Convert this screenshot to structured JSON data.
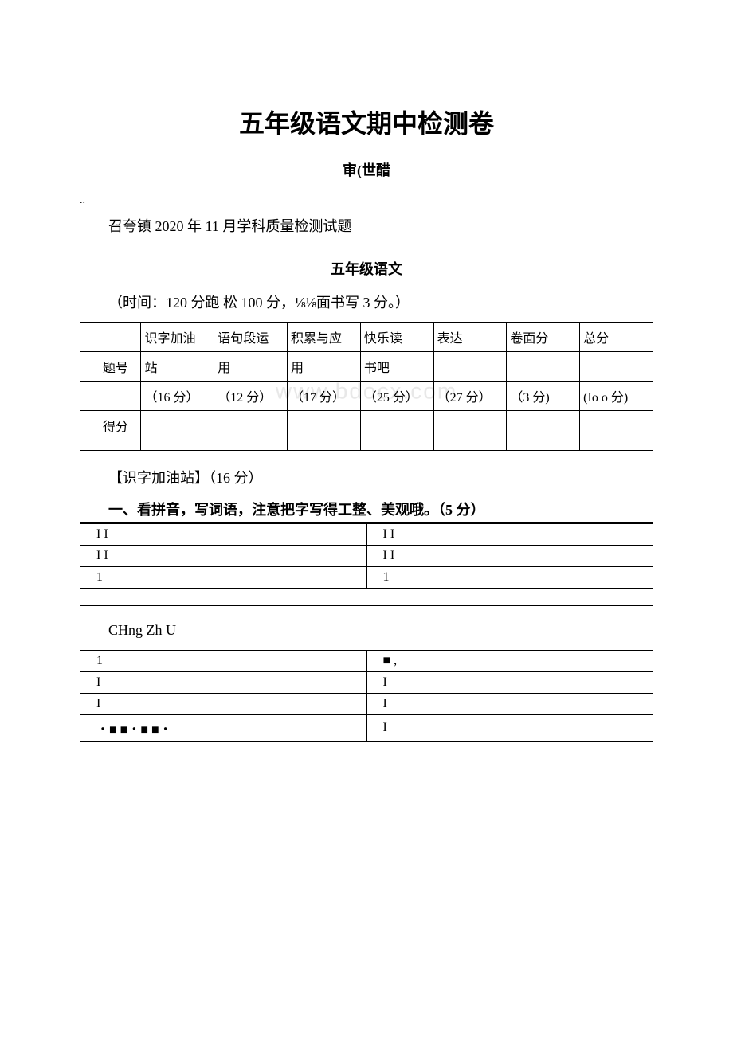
{
  "title": "五年级语文期中检测卷",
  "subtitle": "审(世醋",
  "dots": "..",
  "intro": "召夸镇 2020 年 11 月学科质量检测试题",
  "sectionTitle": "五年级语文",
  "timeText": "（时间：120 分跑 松 100 分，⅛⅛面书写 3 分。）",
  "watermark": "www.bdocx.com",
  "scoreTable": {
    "row1": {
      "col1": "",
      "col2": "识字加油",
      "col3": "语句段运",
      "col4": "积累与应",
      "col5": "快乐读",
      "col6": "表达",
      "col7": "卷面分",
      "col8": "总分"
    },
    "row2": {
      "col1": "题号",
      "col2": "站",
      "col3": "用",
      "col4": "用",
      "col5": "书吧",
      "col6": "",
      "col7": "",
      "col8": ""
    },
    "row3": {
      "col1": "",
      "col2": "（16 分）",
      "col3": "（12 分）",
      "col4": "（17 分）",
      "col5": "（25 分）",
      "col6": "（27 分）",
      "col7": "（3 分)",
      "col8": "(Io o 分)"
    },
    "row4": {
      "col1": "得分",
      "col2": "",
      "col3": "",
      "col4": "",
      "col5": "",
      "col6": "",
      "col7": "",
      "col8": ""
    },
    "row5": {
      "col1": "",
      "col2": "",
      "col3": "",
      "col4": "",
      "col5": "",
      "col6": "",
      "col7": "",
      "col8": ""
    }
  },
  "sectionLabel": "【识字加油站】（16 分）",
  "instruction": "一、看拼音，写词语，注意把字写得工整、美观哦。（5 分）",
  "answerTable1": {
    "r1c1": "I I",
    "r1c2": "I I",
    "r2c1": "I I",
    "r2c2": "I I",
    "r3c1": "1",
    "r3c2": "1"
  },
  "pinyin": "CHng Zh U",
  "answerTable2": {
    "r1c1": "1",
    "r1c2": "■ ,",
    "r2c1": "I",
    "r2c2": "I",
    "r3c1": "I",
    "r3c2": "I",
    "r4c1": "・■ ■・■ ■・",
    "r4c2": "I"
  }
}
